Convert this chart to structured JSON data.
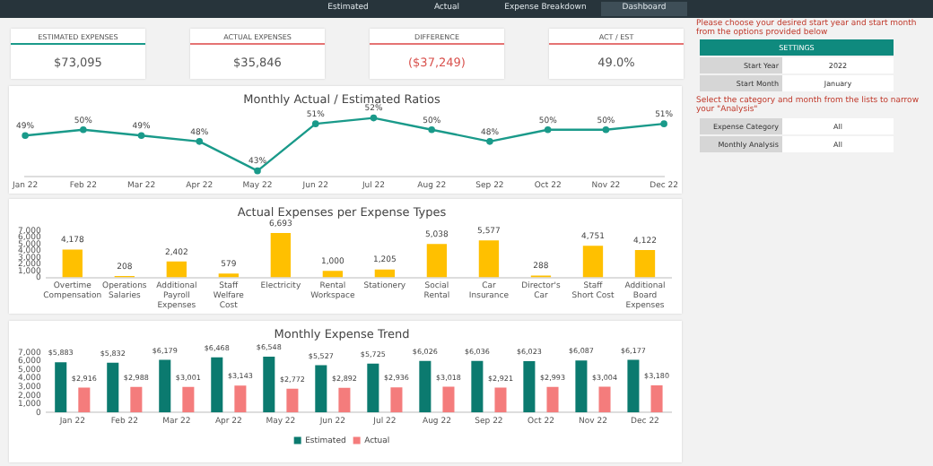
{
  "chart_data": [
    {
      "type": "other",
      "annotations": [
        "Estimated",
        "Actual",
        "Expense Breakdown",
        "Dashboard",
        "ESTIMATED EXPENSES",
        "$73,095",
        "ACTUAL EXPENSES",
        "$35,846",
        "DIFFERENCE",
        "($37,249)",
        "ACT / EST",
        "49.0%"
      ]
    },
    {
      "type": "line",
      "title": "Monthly Actual / Estimated Ratios",
      "categories": [
        "Jan 22",
        "Feb 22",
        "Mar 22",
        "Apr 22",
        "May 22",
        "Jun 22",
        "Jul 22",
        "Aug 22",
        "Sep 22",
        "Oct 22",
        "Nov 22",
        "Dec 22"
      ],
      "marker": "circle",
      "series": [
        {
          "color": "#1a9a8a",
          "values": [
            49,
            50,
            49,
            48,
            43,
            51,
            52,
            50,
            48,
            50,
            50,
            51
          ],
          "value_labels": [
            "49%",
            "50%",
            "49%",
            "48%",
            "43%",
            "51%",
            "52%",
            "50%",
            "48%",
            "50%",
            "50%",
            "51%"
          ]
        }
      ]
    },
    {
      "type": "bar",
      "title": "Actual Expenses per Expense Types",
      "categories": [
        "Overtime Compensation",
        "Operations Salaries",
        "Additional Payroll Expenses",
        "Staff Welfare Cost",
        "Electricity",
        "Rental Workspace",
        "Stationery",
        "Social Rental",
        "Car Insurance",
        "Director's Car",
        "Staff Short Cost",
        "Additional Board Expenses"
      ],
      "color": "#ffc000",
      "values": [
        4178,
        208,
        2402,
        579,
        6693,
        1000,
        1205,
        5038,
        5577,
        288,
        4751,
        4122
      ],
      "value_labels": [
        "4,178",
        "208",
        "2,402",
        "579",
        "6,693",
        "1,000",
        "1,205",
        "5,038",
        "5,577",
        "288",
        "4,751",
        "4,122"
      ],
      "ylim": [
        0,
        7000
      ],
      "yticks": [
        0,
        {
          "value": 1000,
          "label": "1,000"
        },
        {
          "value": 2000,
          "label": "2,000"
        },
        {
          "value": 3000,
          "label": "3,000"
        },
        {
          "value": 4000,
          "label": "4,000"
        },
        {
          "value": 5000,
          "label": "5,000"
        },
        {
          "value": 6000,
          "label": "6,000"
        },
        {
          "value": 7000,
          "label": "7,000"
        }
      ]
    },
    {
      "type": "bar",
      "title": "Monthly Expense Trend",
      "categories": [
        "Jan 22",
        "Feb 22",
        "Mar 22",
        "Apr 22",
        "May 22",
        "Jun 22",
        "Jul 22",
        "Aug 22",
        "Sep 22",
        "Oct 22",
        "Nov 22",
        "Dec 22"
      ],
      "ylim": [
        0,
        7000
      ],
      "yticks": [
        0,
        {
          "value": 1000,
          "label": "1,000"
        },
        {
          "value": 2000,
          "label": "2,000"
        },
        {
          "value": 3000,
          "label": "3,000"
        },
        {
          "value": 4000,
          "label": "4,000"
        },
        {
          "value": 5000,
          "label": "5,000"
        },
        {
          "value": 6000,
          "label": "6,000"
        },
        {
          "value": 7000,
          "label": "7,000"
        }
      ],
      "legend": "bottom",
      "series": [
        {
          "name": "Estimated",
          "color": "#0b7a6f",
          "values": [
            5883,
            5832,
            6179,
            6468,
            6548,
            5527,
            5725,
            6026,
            6036,
            6023,
            6087,
            6177
          ],
          "value_labels": [
            "$5,883",
            "$5,832",
            "$6,179",
            "$6,468",
            "$6,548",
            "$5,527",
            "$5,725",
            "$6,026",
            "$6,036",
            "$6,023",
            "$6,087",
            "$6,177"
          ]
        },
        {
          "name": "Actual",
          "color": "#f47c7c",
          "values": [
            2916,
            2988,
            3001,
            3143,
            2772,
            2892,
            2936,
            3018,
            2921,
            2993,
            3004,
            3180
          ],
          "value_labels": [
            "$2,916",
            "$2,988",
            "$3,001",
            "$3,143",
            "$2,772",
            "$2,892",
            "$2,936",
            "$3,018",
            "$2,921",
            "$2,993",
            "$3,004",
            "$3,180"
          ]
        }
      ]
    },
    {
      "type": "other",
      "annotations": [
        "Please choose your desired start year and start month from the options provided below",
        "SETTINGS",
        "Start Year",
        "2022",
        "Start Month",
        "January",
        "Select the category and month from the lists to narrow your \"Analysis\"",
        "Expense Category",
        "All",
        "Monthly Analysis",
        "All"
      ]
    }
  ]
}
